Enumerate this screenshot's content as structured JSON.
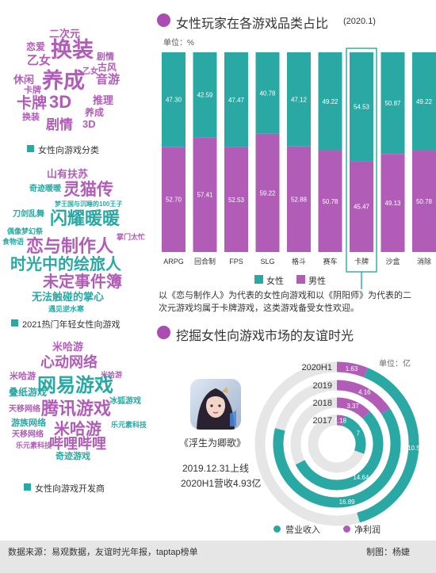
{
  "left": {
    "cloud1": {
      "words": [
        "二次元",
        "恋爱",
        "换装",
        "乙女",
        "剧情",
        "古风",
        "乙女",
        "休闲",
        "养成",
        "音游",
        "卡牌",
        "推理",
        "卡牌",
        "3D",
        "换装",
        "养成",
        "剧情",
        "3D"
      ],
      "label": "女性向游戏分类"
    },
    "cloud2": {
      "words": [
        "山有扶苏",
        "奇迹暖暖",
        "灵猫传",
        "梦王国与沉睡的100王子",
        "闪耀暖暖",
        "刀剑乱舞",
        "偶像梦幻祭",
        "食物语",
        "掌门太忙",
        "恋与制作人",
        "时光中的绘旅人",
        "未定事件簿",
        "无法触碰的掌心",
        "遇见逆水寒"
      ],
      "label": "2021热门年轻女性向游戏"
    },
    "cloud3": {
      "words": [
        "米哈游",
        "心动网络",
        "米哈游",
        "米哈游",
        "网易游戏",
        "叠纸游戏",
        "天移网络",
        "腾讯游戏",
        "冰狐游戏",
        "游族网络",
        "米哈游",
        "天移网络",
        "乐元素科技",
        "乐元素科技",
        "哔哩哔哩",
        "奇迹游戏"
      ],
      "label": "女性向游戏开发商"
    }
  },
  "chart1": {
    "title": "女性玩家在各游戏品类占比",
    "period": "(2020.1)",
    "unit": "单位：%",
    "legend": {
      "female": "女性",
      "male": "男性"
    },
    "colors": {
      "female": "#2aa8a3",
      "male": "#b15db8",
      "highlight": "#2aa8a3"
    },
    "highlight_category": "卡牌",
    "annotation": "以《恋与制作人》为代表的女性向游戏和以《阴阳师》为代表的二次元游戏均属于卡牌游戏，这类游戏备受女性欢迎。"
  },
  "chart2": {
    "title": "挖掘女性向游戏市场的友谊时光",
    "unit": "单位：亿",
    "game_name": "《浮生为卿歌》",
    "launch": "2019.12.31上线",
    "revenue_text": "2020H1营收4.93亿",
    "legend": {
      "revenue": "营业收入",
      "profit": "净利润"
    },
    "colors": {
      "revenue": "#2aa8a3",
      "profit": "#b15db8",
      "track": "#e6e6e6"
    }
  },
  "chart_data": [
    {
      "type": "bar",
      "stacked": true,
      "percent": true,
      "title": "女性玩家在各游戏品类占比",
      "categories": [
        "ARPG",
        "回合制",
        "FPS",
        "SLG",
        "格斗",
        "赛车",
        "卡牌",
        "沙盒",
        "消除"
      ],
      "series": [
        {
          "name": "女性",
          "values": [
            47.3,
            42.59,
            47.47,
            40.78,
            47.12,
            49.22,
            54.53,
            50.87,
            49.22
          ]
        },
        {
          "name": "男性",
          "values": [
            52.7,
            57.41,
            52.53,
            59.22,
            52.88,
            50.78,
            45.47,
            49.13,
            50.78
          ]
        }
      ],
      "value_labels": {
        "女性": [
          "47.30",
          "42.59",
          "47.47",
          "40.78",
          "47.12",
          "49.22",
          "54.53",
          "50.87",
          "49.22"
        ],
        "男性": [
          "52.70",
          "57.41",
          "52.53",
          "59.22",
          "52.88",
          "50.78",
          "45.47",
          "49.13",
          "50.78"
        ]
      },
      "ylim": [
        0,
        100
      ],
      "legend_position": "bottom"
    },
    {
      "type": "radial_bar",
      "title": "挖掘女性向游戏市场的友谊时光",
      "categories": [
        "2017",
        "2018",
        "2019",
        "2020H1"
      ],
      "series": [
        {
          "name": "营业收入",
          "values": [
            7,
            14.64,
            16.89,
            10.5
          ]
        },
        {
          "name": "净利润",
          "values": [
            1.18,
            3.37,
            4.16,
            1.63
          ]
        }
      ],
      "value_labels": {
        "营业收入": [
          "7",
          "14.64",
          "16.89",
          "10.5"
        ],
        "净利润": [
          "1.18",
          "3.37",
          "4.16",
          "1.63"
        ]
      },
      "unit": "亿",
      "legend_position": "bottom"
    }
  ],
  "footer": {
    "source": "数据来源：易观数据，友谊时光年报，taptap榜单",
    "author": "制图：杨婕"
  }
}
